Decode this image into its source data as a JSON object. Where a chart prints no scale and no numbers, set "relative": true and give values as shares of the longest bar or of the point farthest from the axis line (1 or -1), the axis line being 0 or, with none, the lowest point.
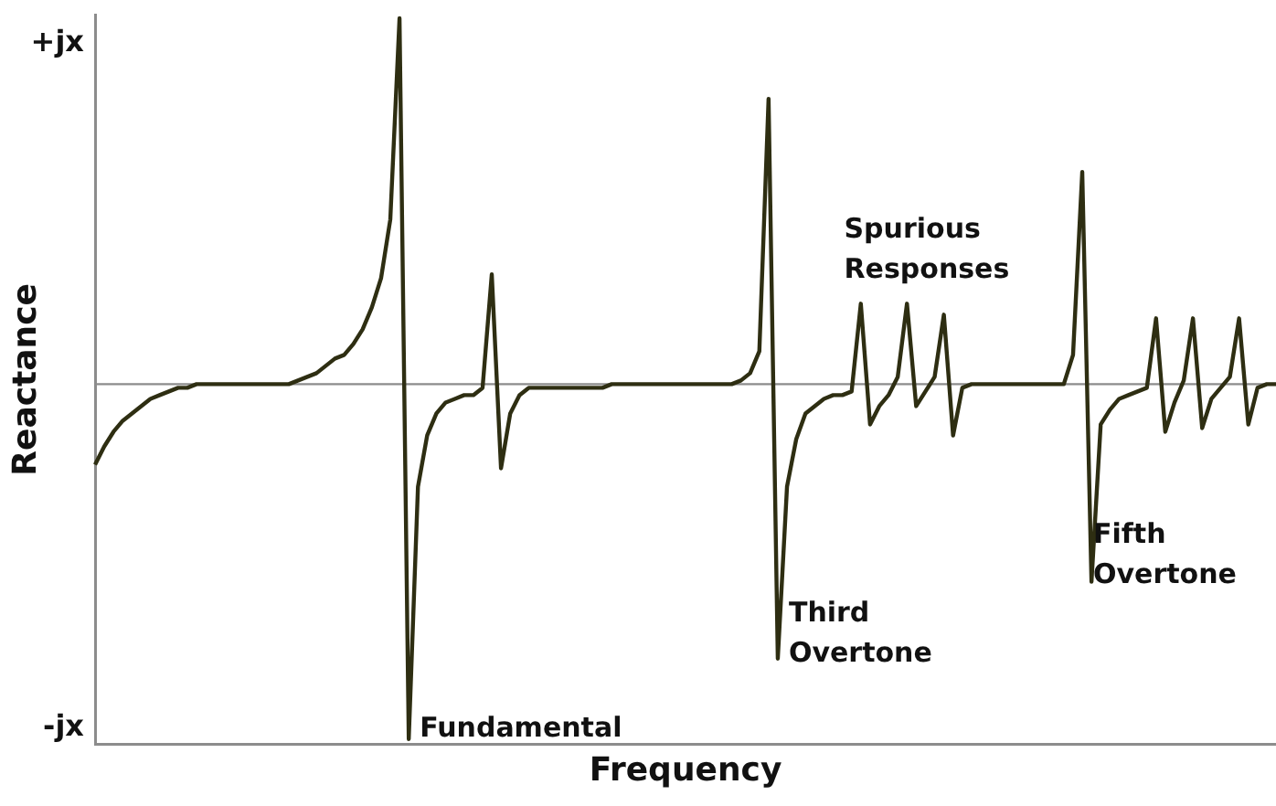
{
  "chart_data": {
    "type": "line",
    "xlabel": "Frequency",
    "ylabel": "Reactance",
    "relative": true,
    "categories": [
      null,
      null,
      null,
      null,
      null,
      null,
      null,
      null,
      null,
      null,
      null,
      null,
      null,
      null,
      null,
      null,
      null,
      null,
      null,
      null,
      null,
      null,
      null,
      null,
      null,
      null,
      null,
      null,
      null,
      null,
      null,
      null,
      null,
      null,
      null,
      null,
      null,
      null,
      null,
      null,
      null,
      null,
      null,
      null,
      null,
      null,
      null,
      null,
      null,
      null,
      null,
      null,
      null,
      null,
      null,
      null,
      null,
      null,
      null,
      null,
      null,
      null,
      null,
      null,
      null,
      null,
      null,
      null,
      null,
      null,
      null,
      null,
      null,
      null,
      null,
      null,
      null,
      null,
      null,
      null,
      null,
      null,
      null,
      null,
      null,
      null,
      null,
      null,
      null,
      null,
      null,
      null,
      null,
      null,
      null,
      null,
      null,
      null,
      null,
      null,
      null,
      null,
      null,
      null,
      null,
      null,
      null,
      null,
      null,
      null,
      null,
      null,
      null,
      null,
      null,
      null,
      null,
      null,
      null,
      null,
      null,
      null,
      null,
      null,
      null,
      null,
      null,
      null,
      null
    ],
    "series": [
      {
        "color": "#2e2e12",
        "values": [
          -0.22,
          -0.17,
          -0.13,
          -0.1,
          -0.08,
          -0.06,
          -0.04,
          -0.03,
          -0.02,
          -0.01,
          -0.01,
          0,
          0,
          0,
          0,
          0,
          0,
          0,
          0,
          0,
          0,
          0,
          0.01,
          0.02,
          0.03,
          0.05,
          0.07,
          0.08,
          0.11,
          0.15,
          0.21,
          0.29,
          0.45,
          1,
          -0.97,
          -0.28,
          -0.14,
          -0.08,
          -0.05,
          -0.04,
          -0.03,
          -0.03,
          -0.01,
          0.3,
          -0.23,
          -0.08,
          -0.03,
          -0.01,
          -0.01,
          -0.01,
          -0.01,
          -0.01,
          -0.01,
          -0.01,
          -0.01,
          -0.01,
          0,
          0,
          0,
          0,
          0,
          0,
          0,
          0,
          0,
          0,
          0,
          0,
          0,
          0,
          0.01,
          0.03,
          0.09,
          0.78,
          -0.75,
          -0.28,
          -0.15,
          -0.08,
          -0.06,
          -0.04,
          -0.03,
          -0.03,
          -0.02,
          0.22,
          -0.11,
          -0.06,
          -0.03,
          0.02,
          0.22,
          -0.06,
          -0.02,
          0.02,
          0.19,
          -0.14,
          -0.01,
          0,
          0,
          0,
          0,
          0,
          0,
          0,
          0,
          0,
          0,
          0,
          0.08,
          0.58,
          -0.54,
          -0.11,
          -0.07,
          -0.04,
          -0.03,
          -0.02,
          -0.01,
          0.18,
          -0.13,
          -0.05,
          0.01,
          0.18,
          -0.12,
          -0.04,
          -0.01,
          0.02,
          0.18,
          -0.11,
          -0.01,
          0,
          0
        ]
      }
    ],
    "ref_lines": [
      {
        "axis": "y",
        "value": 0,
        "color": "#8c8c8c"
      }
    ],
    "grid": false,
    "legend": false,
    "marker": "none",
    "line_style": "solid",
    "annotations": [
      "+jx",
      "-jx",
      "Fundamental",
      "Third Overtone",
      "Spurious Responses",
      "Fifth Overtone"
    ]
  }
}
